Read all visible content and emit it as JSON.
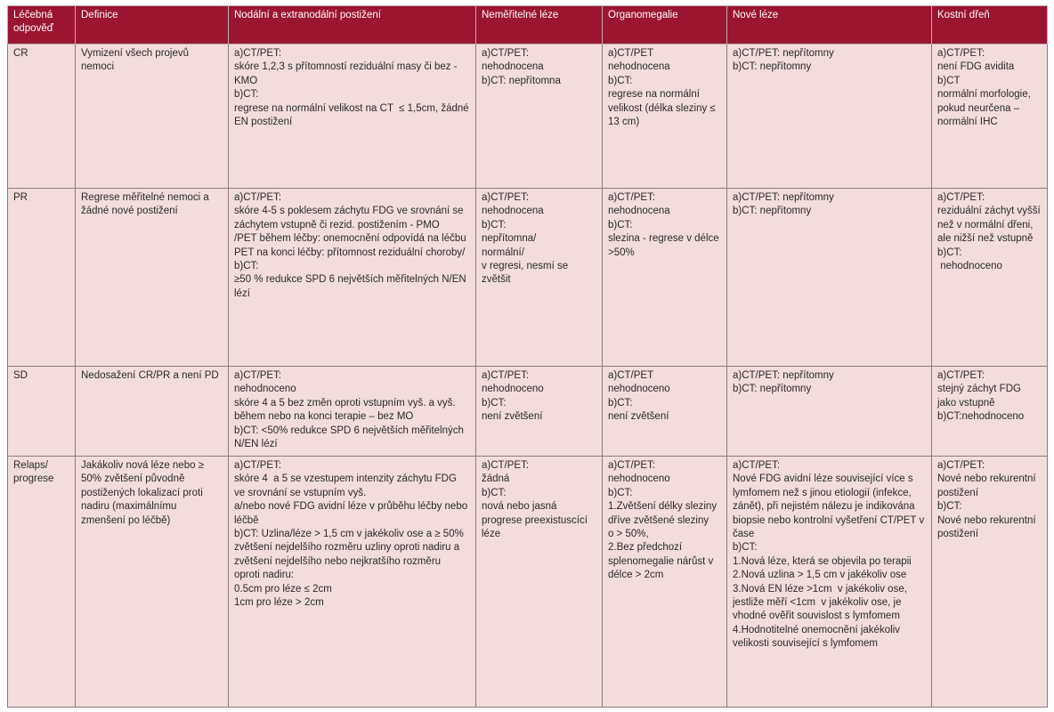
{
  "table": {
    "headers": [
      "Léčebná odpověď",
      "Definice",
      "Nodální a extranodální postižení",
      "Neměřitelné léze",
      "Organomegalie",
      "Nové léze",
      "Kostní dřeň"
    ],
    "rows": [
      {
        "response": "CR",
        "definition": "Vymizení všech projevů nemoci",
        "nodal": [
          "a)CT/PET:",
          "skóre 1,2,3 s přítomností reziduální masy či bez - KMO",
          "b)CT:",
          "regrese na normální velikost na CT  ≤ 1,5cm, žádné EN postižení"
        ],
        "nonmeasurable": [
          "a)CT/PET:",
          "nehodnocena",
          "b)CT: nepřítomna"
        ],
        "organomegaly": [
          "a)CT/PET",
          "nehodnocena",
          "b)CT:",
          "regrese na normální velikost (délka sleziny ≤ 13 cm)"
        ],
        "new_lesions": [
          "a)CT/PET: nepřítomny",
          "b)CT: nepřítomny"
        ],
        "bone_marrow": [
          "a)CT/PET:",
          "není FDG avidita",
          "b)CT",
          "normální morfologie, pokud neurčena – normální IHC"
        ]
      },
      {
        "response": "PR",
        "definition": "Regrese měřitelné nemoci a žádné nové postižení",
        "nodal": [
          "a)CT/PET:",
          "skóre 4-5 s poklesem záchytu FDG ve srovnání se záchytem vstupně či rezid. postižením - PMO",
          "/PET během léčby: onemocnění odpovídá na léčbu",
          "PET na konci léčby: přítomnost reziduální choroby/",
          "b)CT:",
          "≥50 % redukce SPD 6 největších měřitelných N/EN lézí"
        ],
        "nonmeasurable": [
          "a)CT/PET:",
          "nehodnocena",
          "b)CT:",
          "nepřítomna/",
          "normální/",
          "v regresi, nesmí se zvětšit"
        ],
        "organomegaly": [
          "a)CT/PET:",
          "nehodnocena",
          "b)CT:",
          "slezina - regrese v délce >50%"
        ],
        "new_lesions": [
          "a)CT/PET: nepřítomny",
          "b)CT: nepřítomny"
        ],
        "bone_marrow": [
          "a)CT/PET:",
          "reziduální záchyt vyšší než v normální dřeni, ale nižší než vstupně",
          "b)CT:",
          " nehodnoceno"
        ]
      },
      {
        "response": "SD",
        "definition": "Nedosažení CR/PR a není PD",
        "nodal": [
          "a)CT/PET:",
          "nehodnoceno",
          "skóre 4 a 5 bez změn oproti vstupním vyš. a vyš. během nebo na konci terapie – bez MO",
          "b)CT: <50% redukce SPD 6 největších měřitelných N/EN lézí"
        ],
        "nonmeasurable": [
          "a)CT/PET:",
          "nehodnoceno",
          "b)CT:",
          "není zvětšení"
        ],
        "organomegaly": [
          "a)CT/PET",
          "nehodnoceno",
          "b)CT:",
          "není zvětšení"
        ],
        "new_lesions": [
          "a)CT/PET: nepřítomny",
          "b)CT: nepřítomny"
        ],
        "bone_marrow": [
          "a)CT/PET:",
          "stejný záchyt FDG jako vstupně",
          "b)CT:nehodnoceno"
        ]
      },
      {
        "response": "Relaps/ progrese",
        "definition": "Jakákoliv nová léze nebo ≥ 50% zvětšení původně postižených lokalizací proti nadiru (maximálnímu zmenšení po léčbě)",
        "nodal": [
          "a)CT/PET:",
          "skóre 4  a 5 se vzestupem intenzity záchytu FDG               ve srovnání se vstupním vyš.",
          "a/nebo nové FDG avidní léze v průběhu léčby nebo léčbě",
          "b)CT: Uzlina/léze > 1,5 cm v jakékoliv ose a ≥ 50%  zvětšení nejdelšího rozměru uzliny oproti nadiru a  zvětšení nejdelšího nebo nejkratšího rozměru  oproti nadiru:",
          "0.5cm pro léze ≤ 2cm",
          "1cm pro léze > 2cm"
        ],
        "nonmeasurable": [
          "a)CT/PET:",
          "žádná",
          "b)CT:",
          "nová nebo jasná progrese preexistuscící léze"
        ],
        "organomegaly": [
          "a)CT/PET:",
          "nehodnoceno",
          "b)CT:",
          "1.Zvětšení délky sleziny dříve zvětšené sleziny          o > 50%,",
          "2.Bez předchozí splenomegalie nárůst v délce > 2cm"
        ],
        "new_lesions": [
          "a)CT/PET:",
          "Nové FDG avidní léze související více s lymfomem než s jinou etiologií (infekce, zánět), při nejistém nálezu je indikována biopsie nebo kontrolní vyšetření CT/PET v čase",
          "b)CT:",
          "1.Nová léze, která se objevila po terapii",
          "2.Nová uzlina > 1,5 cm v jakékoliv ose",
          "3.Nová EN léze >1cm  v jakékoliv ose, jestliže měří <1cm  v jakékoliv ose, je vhodné ověřit souvislost s lymfomem",
          "4.Hodnotitelné onemocnění jakékoliv velikosti související s lymfomem"
        ],
        "bone_marrow": [
          "a)CT/PET:",
          "Nové nebo rekurentní postižení",
          "b)CT:",
          "Nové nebo rekurentní postižení"
        ]
      }
    ]
  }
}
